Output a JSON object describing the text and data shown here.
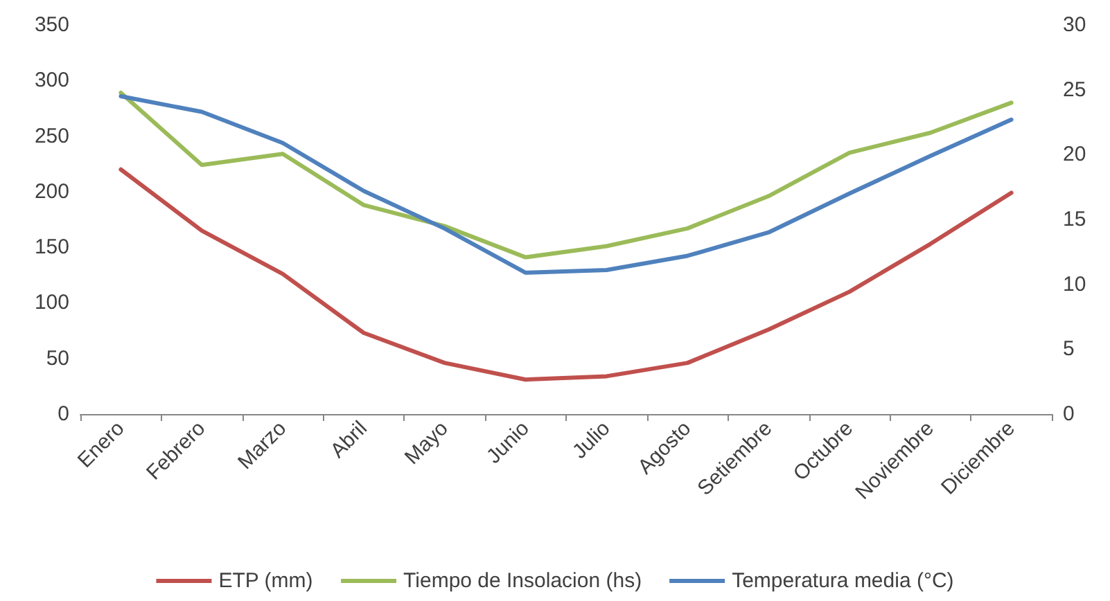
{
  "chart_data": {
    "type": "line",
    "categories": [
      "Enero",
      "Febrero",
      "Marzo",
      "Abril",
      "Mayo",
      "Junio",
      "Julio",
      "Agosto",
      "Setiembre",
      "Octubre",
      "Noviembre",
      "Diciembre"
    ],
    "series": [
      {
        "name": "ETP (mm)",
        "color": "#c0504d",
        "values": [
          220,
          165,
          126,
          73,
          46,
          31,
          34,
          46,
          76,
          110,
          153,
          199
        ]
      },
      {
        "name": "Tiempo de Insolacion (hs)",
        "color": "#9bbb59",
        "values": [
          289,
          224,
          234,
          188,
          169,
          141,
          151,
          167,
          196,
          235,
          253,
          280
        ]
      },
      {
        "name": "Temperatura media (°C)",
        "color": "#4f81bd",
        "axis": "y2",
        "values": [
          24.5,
          23.3,
          20.9,
          17.2,
          14.3,
          10.9,
          11.1,
          12.2,
          14.0,
          17.0,
          19.9,
          22.7
        ]
      }
    ],
    "ylim": [
      0,
      350
    ],
    "yticks": [
      0,
      50,
      100,
      150,
      200,
      250,
      300,
      350
    ],
    "y2lim": [
      0,
      30
    ],
    "y2ticks": [
      0,
      5,
      10,
      15,
      20,
      25,
      30
    ],
    "grid": false,
    "legend": "bottom",
    "marker": "none",
    "line_style": "solid"
  }
}
